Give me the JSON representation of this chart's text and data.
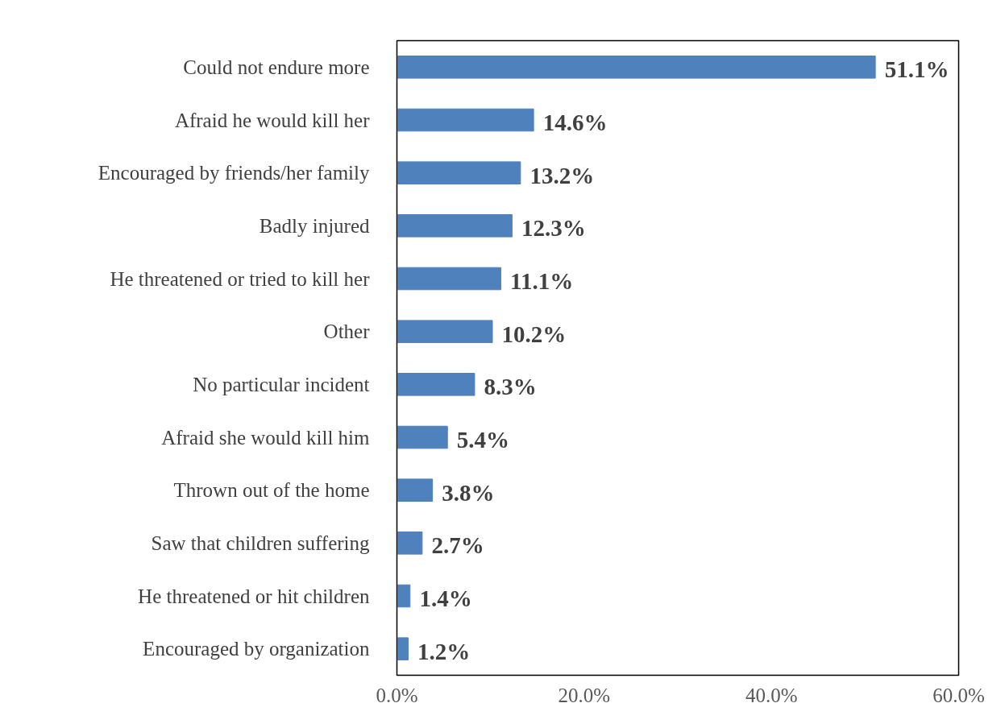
{
  "chart_data": {
    "type": "bar",
    "orientation": "horizontal",
    "categories": [
      "Could not endure more",
      "Afraid he would kill her",
      "Encouraged by friends/her family",
      "Badly injured",
      "He threatened or tried to kill her",
      "Other",
      "No particular incident",
      "Afraid she would kill him",
      "Thrown out of the home",
      "Saw that children suffering",
      "He threatened or hit children",
      "Encouraged by organization"
    ],
    "values": [
      51.1,
      14.6,
      13.2,
      12.3,
      11.1,
      10.2,
      8.3,
      5.4,
      3.8,
      2.7,
      1.4,
      1.2
    ],
    "value_labels": [
      "51.1%",
      "14.6%",
      "13.2%",
      "12.3%",
      "11.1%",
      "10.2%",
      "8.3%",
      "5.4%",
      "3.8%",
      "2.7%",
      "1.4%",
      "1.2%"
    ],
    "color": "#4f81bd",
    "xlim": [
      0,
      60
    ],
    "xticks": [
      {
        "value": 0,
        "label": "0.0%"
      },
      {
        "value": 20,
        "label": "20.0%"
      },
      {
        "value": 40,
        "label": "40.0%"
      },
      {
        "value": 60,
        "label": "60.0%"
      }
    ],
    "grid": false
  }
}
